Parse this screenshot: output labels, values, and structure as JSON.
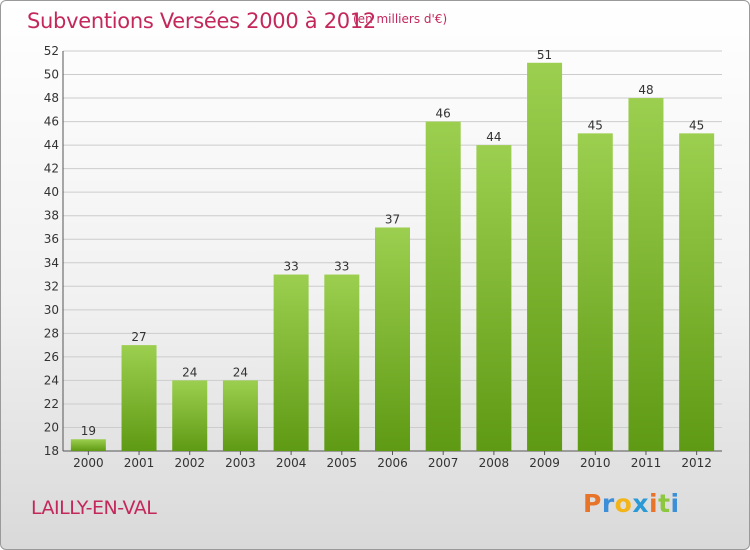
{
  "title": "Subventions Versées 2000 à 2012",
  "subtitle": "(en milliers d'€)",
  "place": "LAILLY-EN-VAL",
  "logo": {
    "letters": [
      "P",
      "r",
      "o",
      "x",
      "i",
      "t",
      "i"
    ],
    "colors": [
      "#e8742a",
      "#3a8fd8",
      "#f2b416",
      "#2a9ad6",
      "#e8742a",
      "#8dc63f",
      "#3a8fd8"
    ]
  },
  "colors": {
    "accent": "#c4285a",
    "bar_top": "#9ccf4f",
    "bar_bottom": "#5f9a14",
    "grid": "#cccccc"
  },
  "chart_data": {
    "type": "bar",
    "title": "Subventions Versées 2000 à 2012",
    "subtitle": "(en milliers d'€)",
    "categories": [
      "2000",
      "2001",
      "2002",
      "2003",
      "2004",
      "2005",
      "2006",
      "2007",
      "2008",
      "2009",
      "2010",
      "2011",
      "2012"
    ],
    "values": [
      19,
      27,
      24,
      24,
      33,
      33,
      37,
      46,
      44,
      51,
      45,
      48,
      45
    ],
    "ylim": [
      18,
      52
    ],
    "yticks": [
      18,
      20,
      22,
      24,
      26,
      28,
      30,
      32,
      34,
      36,
      38,
      40,
      42,
      44,
      46,
      48,
      50,
      52
    ],
    "xlabel": "",
    "ylabel": "",
    "grid": true,
    "legend": "none"
  }
}
